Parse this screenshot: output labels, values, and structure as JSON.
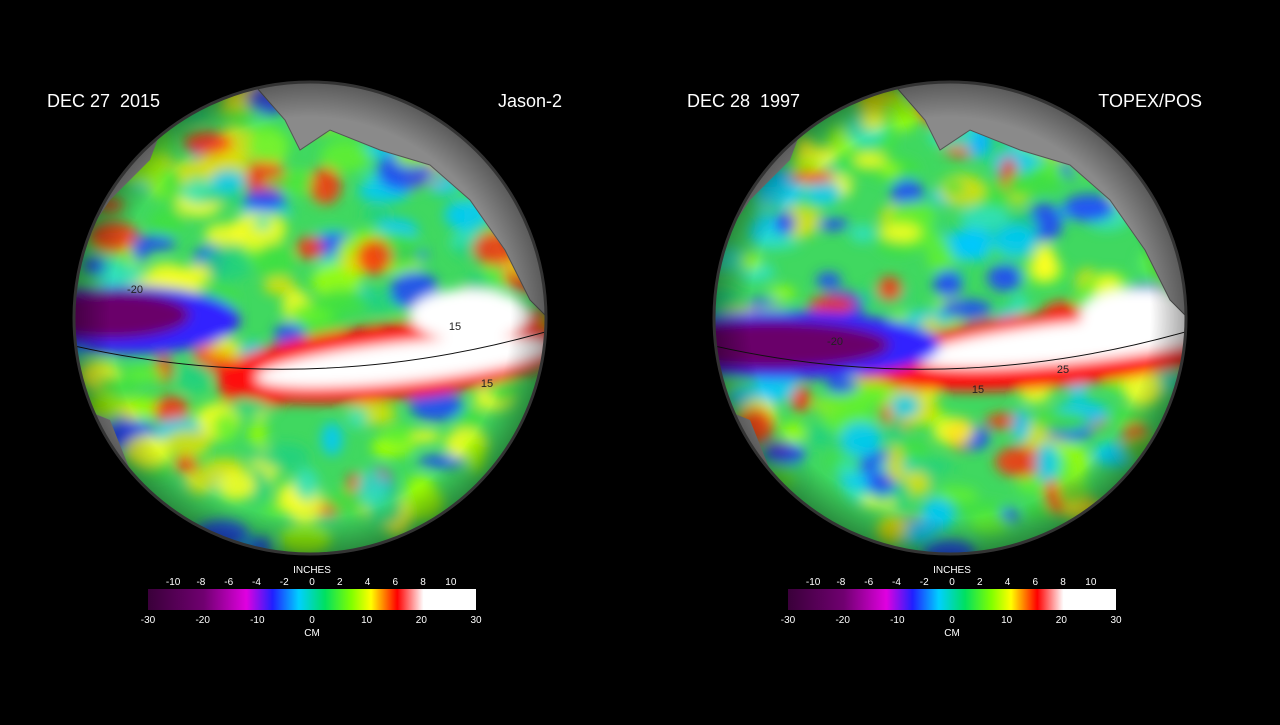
{
  "panels": [
    {
      "date": "DEC 27  2015",
      "mission": "Jason-2",
      "contour_labels": [
        "-20",
        "15",
        "15"
      ],
      "colorbar": {
        "top_label": "INCHES",
        "top_ticks": [
          -10,
          -8,
          -6,
          -4,
          -2,
          0,
          2,
          4,
          6,
          8,
          10
        ],
        "bottom_label": "CM",
        "bottom_ticks": [
          -30,
          -20,
          -10,
          0,
          10,
          20,
          30
        ]
      }
    },
    {
      "date": "DEC 28  1997",
      "mission": "TOPEX/POS",
      "contour_labels": [
        "-20",
        "25",
        "15"
      ],
      "colorbar": {
        "top_label": "INCHES",
        "top_ticks": [
          -10,
          -8,
          -6,
          -4,
          -2,
          0,
          2,
          4,
          6,
          8,
          10
        ],
        "bottom_label": "CM",
        "bottom_ticks": [
          -30,
          -20,
          -10,
          0,
          10,
          20,
          30
        ]
      }
    }
  ]
}
